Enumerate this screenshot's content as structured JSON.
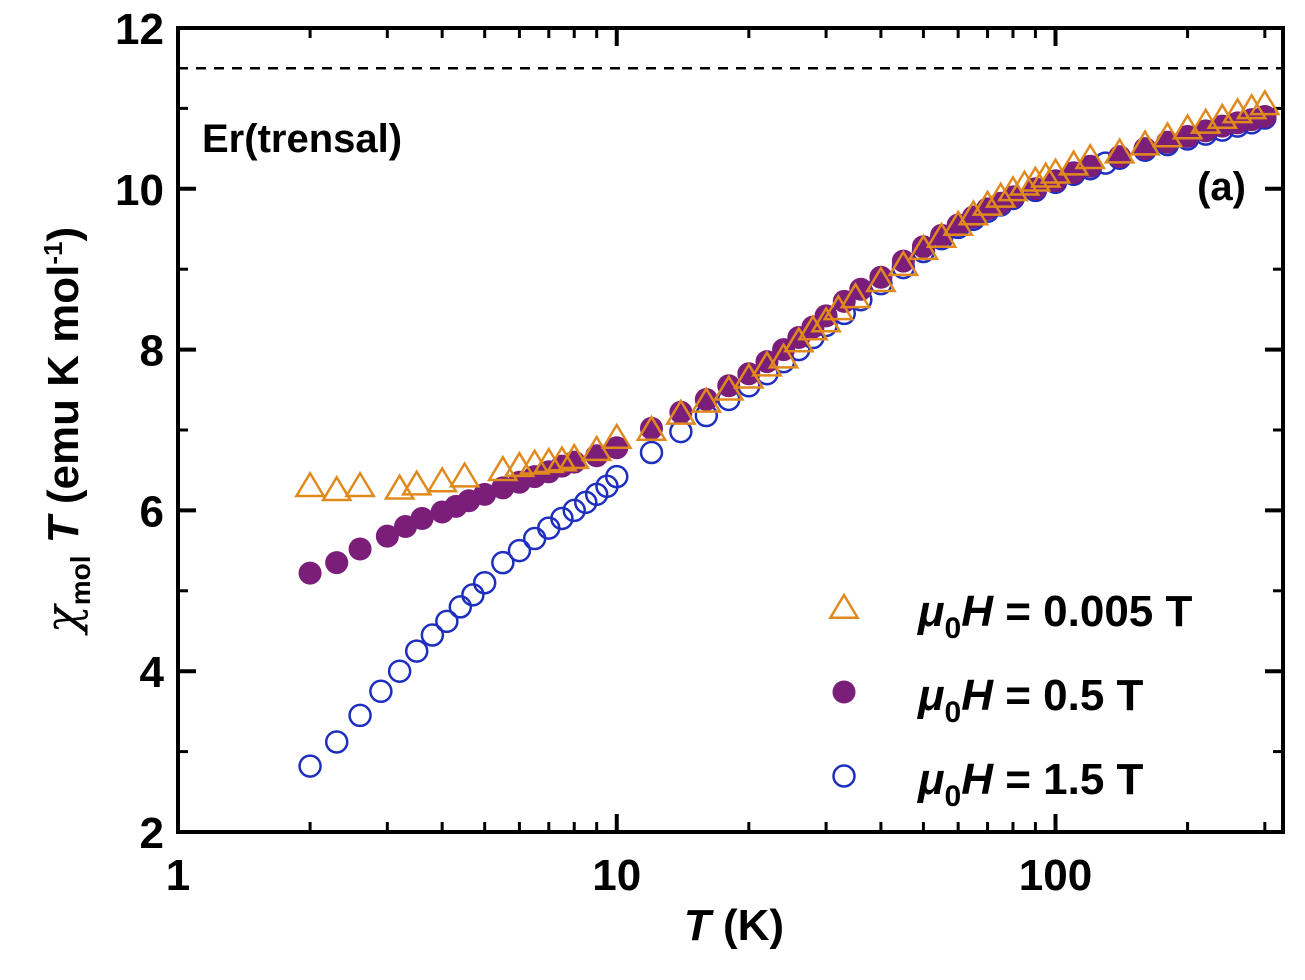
{
  "chart_data": {
    "type": "scatter",
    "x_scale": "log",
    "xlim": [
      1,
      330
    ],
    "ylim": [
      2,
      12
    ],
    "x_ticks": [
      1,
      10,
      100
    ],
    "x_tick_labels": [
      "1",
      "10",
      "100"
    ],
    "y_ticks": [
      2,
      4,
      6,
      8,
      10,
      12
    ],
    "y_tick_labels": [
      "2",
      "4",
      "6",
      "8",
      "10",
      "12"
    ],
    "xlabel": {
      "symbol": "T",
      "unit": " (K)"
    },
    "ylabel": {
      "symbol": "χ",
      "sub": "mol",
      "var": " T",
      "unit": " (emu K mol",
      "sup": "-1",
      "close": ")"
    },
    "reference_line": {
      "y": 11.5,
      "style": "dashed"
    },
    "annotations": {
      "compound": "Er(trensal)",
      "panel": "(a)"
    },
    "legend_position": "bottom-right",
    "series": [
      {
        "name": "μ0H = 0.005 T",
        "label": {
          "mu": "μ",
          "sub": "0",
          "var": "H",
          "rest": " = 0.005 T"
        },
        "marker": "open-triangle",
        "color": "#E08A1E",
        "x": [
          2,
          2.3,
          2.6,
          3.2,
          3.5,
          4,
          4.5,
          5.5,
          6,
          6.5,
          7,
          7.5,
          8,
          9,
          10,
          12,
          14,
          16,
          18,
          20,
          22,
          24,
          26,
          28,
          30,
          32,
          35,
          40,
          45,
          50,
          55,
          60,
          65,
          70,
          75,
          80,
          85,
          90,
          95,
          100,
          110,
          120,
          140,
          160,
          180,
          200,
          220,
          240,
          260,
          280,
          300
        ],
        "y": [
          6.3,
          6.25,
          6.3,
          6.27,
          6.32,
          6.36,
          6.42,
          6.5,
          6.55,
          6.58,
          6.6,
          6.62,
          6.65,
          6.75,
          6.9,
          7.0,
          7.2,
          7.35,
          7.5,
          7.65,
          7.8,
          7.9,
          8.1,
          8.25,
          8.35,
          8.5,
          8.65,
          8.85,
          9.05,
          9.25,
          9.4,
          9.55,
          9.68,
          9.8,
          9.9,
          9.98,
          10.05,
          10.1,
          10.15,
          10.2,
          10.3,
          10.38,
          10.45,
          10.55,
          10.65,
          10.75,
          10.82,
          10.88,
          10.95,
          11.0,
          11.05
        ]
      },
      {
        "name": "μ0H = 0.5 T",
        "label": {
          "mu": "μ",
          "sub": "0",
          "var": "H",
          "rest": " = 0.5 T"
        },
        "marker": "filled-circle",
        "color": "#7B1E7A",
        "x": [
          2,
          2.3,
          2.6,
          3.0,
          3.3,
          3.6,
          4.0,
          4.3,
          4.6,
          5.0,
          5.5,
          6,
          6.5,
          7,
          7.5,
          8,
          9,
          10,
          12,
          14,
          16,
          18,
          20,
          22,
          24,
          26,
          28,
          30,
          33,
          36,
          40,
          45,
          50,
          55,
          60,
          65,
          70,
          75,
          80,
          90,
          100,
          110,
          120,
          140,
          160,
          180,
          200,
          220,
          240,
          260,
          280,
          300
        ],
        "y": [
          5.22,
          5.35,
          5.52,
          5.68,
          5.8,
          5.9,
          5.98,
          6.05,
          6.12,
          6.2,
          6.28,
          6.35,
          6.42,
          6.48,
          6.55,
          6.6,
          6.68,
          6.78,
          7.02,
          7.22,
          7.38,
          7.55,
          7.7,
          7.85,
          8.0,
          8.15,
          8.28,
          8.42,
          8.6,
          8.75,
          8.9,
          9.1,
          9.28,
          9.42,
          9.55,
          9.65,
          9.75,
          9.82,
          9.9,
          10.0,
          10.1,
          10.2,
          10.28,
          10.4,
          10.5,
          10.58,
          10.65,
          10.72,
          10.78,
          10.82,
          10.86,
          10.9
        ]
      },
      {
        "name": "μ0H = 1.5 T",
        "label": {
          "mu": "μ",
          "sub": "0",
          "var": "H",
          "rest": " = 1.5 T"
        },
        "marker": "open-circle",
        "color": "#1E2FBF",
        "x": [
          2,
          2.3,
          2.6,
          2.9,
          3.2,
          3.5,
          3.8,
          4.1,
          4.4,
          4.7,
          5.0,
          5.5,
          6,
          6.5,
          7,
          7.5,
          8,
          8.5,
          9,
          9.5,
          10,
          12,
          14,
          16,
          18,
          20,
          22,
          24,
          26,
          28,
          30,
          33,
          36,
          40,
          45,
          50,
          55,
          60,
          65,
          70,
          75,
          80,
          90,
          100,
          110,
          120,
          130,
          140,
          160,
          180,
          200,
          220,
          240,
          260,
          280,
          300
        ],
        "y": [
          2.82,
          3.12,
          3.45,
          3.75,
          4.0,
          4.25,
          4.45,
          4.62,
          4.8,
          4.95,
          5.1,
          5.35,
          5.5,
          5.65,
          5.78,
          5.9,
          6.0,
          6.1,
          6.2,
          6.3,
          6.42,
          6.72,
          6.98,
          7.18,
          7.38,
          7.55,
          7.7,
          7.85,
          8.0,
          8.15,
          8.3,
          8.45,
          8.62,
          8.82,
          9.02,
          9.22,
          9.38,
          9.52,
          9.62,
          9.72,
          9.8,
          9.88,
          9.98,
          10.08,
          10.18,
          10.25,
          10.32,
          10.38,
          10.48,
          10.55,
          10.62,
          10.68,
          10.73,
          10.78,
          10.82,
          10.88
        ]
      }
    ]
  }
}
